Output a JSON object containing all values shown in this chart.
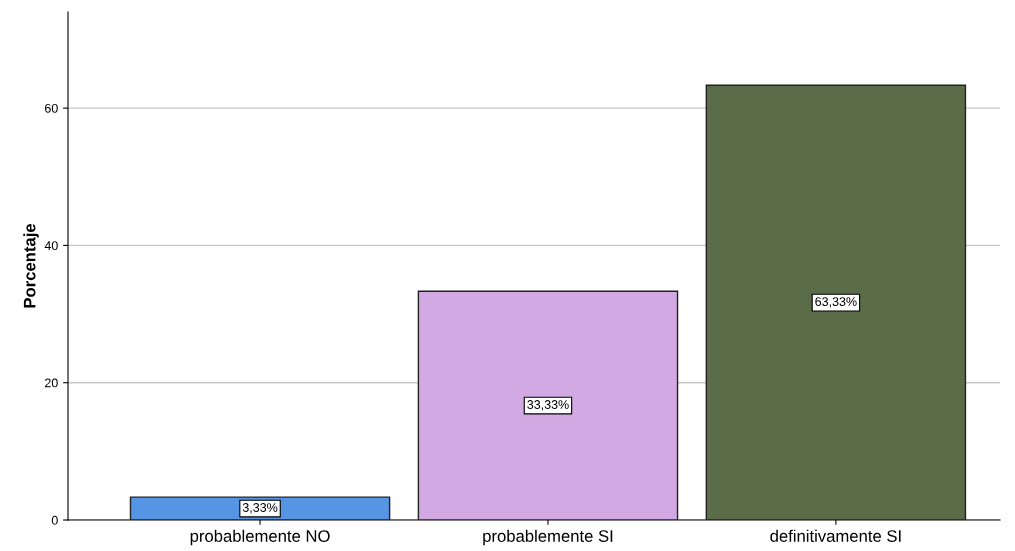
{
  "chart_data": {
    "type": "bar",
    "ylabel": "Porcentaje",
    "categories": [
      "probablemente NO",
      "probablemente SI",
      "definitivamente SI"
    ],
    "values": [
      3.33,
      33.33,
      63.33
    ],
    "colors": [
      "#5595e3",
      "#d2a9e3",
      "#5a6d48"
    ],
    "value_labels": [
      "3,33%",
      "33,33%",
      "63,33%"
    ],
    "ylim": [
      0,
      74
    ],
    "yticks": [
      0,
      20,
      40,
      60
    ],
    "grid": "y",
    "legend": false
  }
}
